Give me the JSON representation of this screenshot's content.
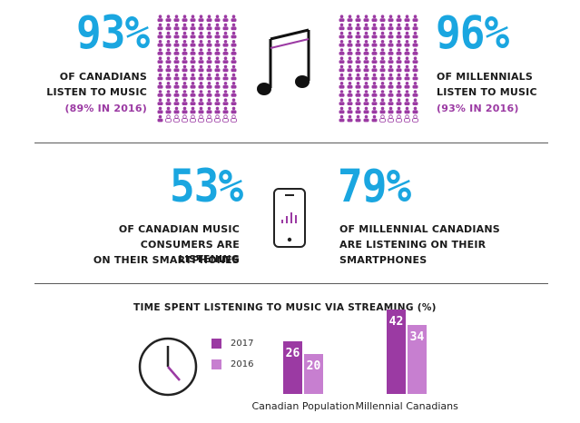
{
  "colors": {
    "accent_blue": "#1aa6e0",
    "purple_2017": "#9b3aa3",
    "purple_2016": "#c77fd0",
    "icon_light": "#d7b7dc",
    "dark": "#1a1a1a"
  },
  "section1": {
    "left": {
      "percent": "93%",
      "caption_line1": "OF CANADIANS",
      "caption_line2": "LISTEN TO MUSIC",
      "previous": "(89% IN 2016)",
      "people_filled_fraction": 0.93
    },
    "right": {
      "percent": "96%",
      "caption_line1": "OF MILLENNIALS",
      "caption_line2": "LISTEN TO MUSIC",
      "previous": "(93% IN 2016)",
      "people_filled_fraction": 0.96
    },
    "center_icon": "music-note-icon"
  },
  "section2": {
    "left": {
      "percent": "53%",
      "caption_line1": "OF CANADIAN MUSIC",
      "caption_line2": "CONSUMERS ARE LISTENING",
      "caption_line3": "ON THEIR SMARTPHONES"
    },
    "right": {
      "percent": "79%",
      "caption_line1": "OF MILLENNIAL CANADIANS",
      "caption_line2": "ARE LISTENING ON THEIR",
      "caption_line3": "SMARTPHONES"
    },
    "center_icon": "smartphone-icon"
  },
  "section3": {
    "title": "TIME SPENT LISTENING TO MUSIC VIA STREAMING (%)",
    "clock_icon": "clock-icon"
  },
  "chart_data": {
    "type": "bar",
    "title": "TIME SPENT LISTENING TO MUSIC VIA STREAMING (%)",
    "categories": [
      "Canadian Population",
      "Millennial Canadians"
    ],
    "series": [
      {
        "name": "2017",
        "values": [
          26,
          42
        ],
        "color": "#9b3aa3"
      },
      {
        "name": "2016",
        "values": [
          20,
          34
        ],
        "color": "#c77fd0"
      }
    ],
    "ylim": [
      0,
      45
    ],
    "legend": "left",
    "grid": false
  }
}
